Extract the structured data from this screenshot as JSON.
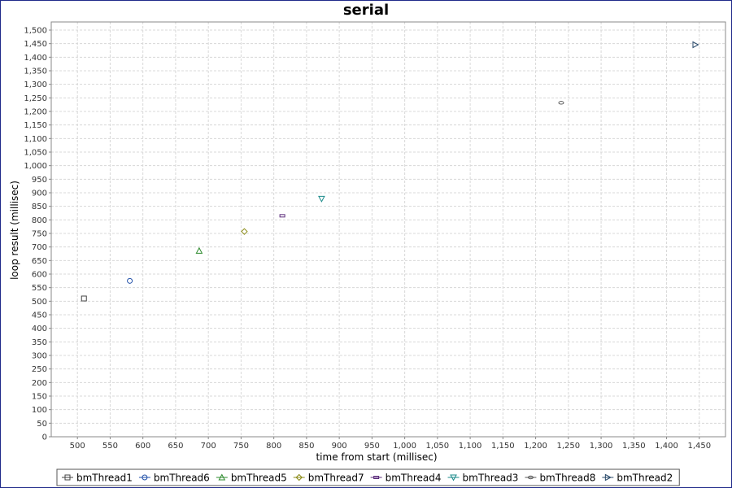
{
  "chart_data": {
    "type": "scatter",
    "title": "serial",
    "xlabel": "time from start (millisec)",
    "ylabel": "loop result (millisec)",
    "xlim": [
      460,
      1490
    ],
    "ylim": [
      0,
      1530
    ],
    "xticks": [
      500,
      550,
      600,
      650,
      700,
      750,
      800,
      850,
      900,
      950,
      1000,
      1050,
      1100,
      1150,
      1200,
      1250,
      1300,
      1350,
      1400,
      1450
    ],
    "xtick_labels": [
      "500",
      "550",
      "600",
      "650",
      "700",
      "750",
      "800",
      "850",
      "900",
      "950",
      "1,000",
      "1,050",
      "1,100",
      "1,150",
      "1,200",
      "1,250",
      "1,300",
      "1,350",
      "1,400",
      "1,450"
    ],
    "yticks": [
      0,
      50,
      100,
      150,
      200,
      250,
      300,
      350,
      400,
      450,
      500,
      550,
      600,
      650,
      700,
      750,
      800,
      850,
      900,
      950,
      1000,
      1050,
      1100,
      1150,
      1200,
      1250,
      1300,
      1350,
      1400,
      1450,
      1500
    ],
    "ytick_labels": [
      "0",
      "50",
      "100",
      "150",
      "200",
      "250",
      "300",
      "350",
      "400",
      "450",
      "500",
      "550",
      "600",
      "650",
      "700",
      "750",
      "800",
      "850",
      "900",
      "950",
      "1,000",
      "1,050",
      "1,100",
      "1,150",
      "1,200",
      "1,250",
      "1,300",
      "1,350",
      "1,400",
      "1,450",
      "1,500"
    ],
    "grid": true,
    "legend_position": "bottom",
    "series": [
      {
        "name": "bmThread1",
        "marker": "square",
        "color": "#444444",
        "points": [
          [
            510,
            510
          ]
        ]
      },
      {
        "name": "bmThread6",
        "marker": "circle",
        "color": "#1f4fa8",
        "points": [
          [
            580,
            575
          ]
        ]
      },
      {
        "name": "bmThread5",
        "marker": "triangle-up",
        "color": "#2e8b2e",
        "points": [
          [
            686,
            686
          ]
        ]
      },
      {
        "name": "bmThread7",
        "marker": "diamond",
        "color": "#8a8a14",
        "points": [
          [
            755,
            757
          ]
        ]
      },
      {
        "name": "bmThread4",
        "marker": "rect-wide",
        "color": "#5a2a7a",
        "points": [
          [
            813,
            815
          ]
        ]
      },
      {
        "name": "bmThread3",
        "marker": "triangle-down",
        "color": "#1a8a8a",
        "points": [
          [
            873,
            878
          ]
        ]
      },
      {
        "name": "bmThread8",
        "marker": "ellipse",
        "color": "#555555",
        "points": [
          [
            1239,
            1232
          ]
        ]
      },
      {
        "name": "bmThread2",
        "marker": "triangle-right",
        "color": "#2a4a6a",
        "points": [
          [
            1444,
            1446
          ]
        ]
      }
    ]
  }
}
